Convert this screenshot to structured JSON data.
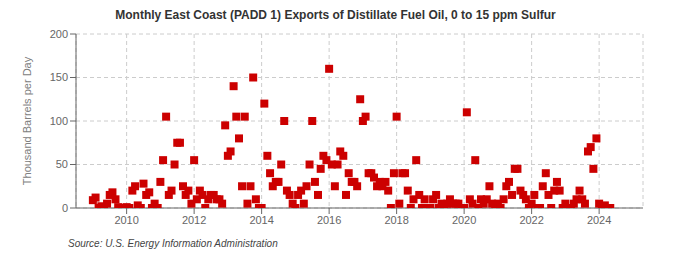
{
  "chart_data": {
    "type": "scatter",
    "title": "Monthly East Coast (PADD 1) Exports of Distillate Fuel Oil, 0 to 15 ppm Sulfur",
    "ylabel": "Thousand Barrels per Day",
    "annotations": [
      "Source: U.S. Energy Information Administration"
    ],
    "color": "#cc0000",
    "marker": "square",
    "grid": true,
    "xlim": [
      2008.5,
      2025.3
    ],
    "xticks": [
      2010,
      2012,
      2014,
      2016,
      2018,
      2020,
      2022,
      2024
    ],
    "ylim": [
      0,
      200
    ],
    "yticks": [
      0,
      50,
      100,
      150,
      200
    ],
    "x": [
      2009.0,
      2009.08,
      2009.17,
      2009.25,
      2009.33,
      2009.42,
      2009.5,
      2009.58,
      2009.67,
      2009.75,
      2009.83,
      2009.92,
      2010.0,
      2010.08,
      2010.17,
      2010.25,
      2010.33,
      2010.42,
      2010.5,
      2010.58,
      2010.67,
      2010.75,
      2010.83,
      2010.92,
      2011.0,
      2011.08,
      2011.17,
      2011.25,
      2011.33,
      2011.42,
      2011.5,
      2011.58,
      2011.67,
      2011.75,
      2011.83,
      2011.92,
      2012.0,
      2012.08,
      2012.17,
      2012.25,
      2012.33,
      2012.42,
      2012.5,
      2012.58,
      2012.67,
      2012.75,
      2012.83,
      2012.92,
      2013.0,
      2013.08,
      2013.17,
      2013.25,
      2013.33,
      2013.42,
      2013.5,
      2013.58,
      2013.67,
      2013.75,
      2013.83,
      2013.92,
      2014.0,
      2014.08,
      2014.17,
      2014.25,
      2014.33,
      2014.42,
      2014.5,
      2014.58,
      2014.67,
      2014.75,
      2014.83,
      2014.92,
      2015.0,
      2015.08,
      2015.17,
      2015.25,
      2015.33,
      2015.42,
      2015.5,
      2015.58,
      2015.67,
      2015.75,
      2015.83,
      2015.92,
      2016.0,
      2016.08,
      2016.17,
      2016.25,
      2016.33,
      2016.42,
      2016.5,
      2016.58,
      2016.67,
      2016.75,
      2016.83,
      2016.92,
      2017.0,
      2017.08,
      2017.17,
      2017.25,
      2017.33,
      2017.42,
      2017.5,
      2017.58,
      2017.67,
      2017.75,
      2017.83,
      2017.92,
      2018.0,
      2018.08,
      2018.17,
      2018.25,
      2018.33,
      2018.42,
      2018.5,
      2018.58,
      2018.67,
      2018.75,
      2018.83,
      2018.92,
      2019.0,
      2019.08,
      2019.17,
      2019.25,
      2019.33,
      2019.42,
      2019.5,
      2019.58,
      2019.67,
      2019.75,
      2019.83,
      2019.92,
      2020.0,
      2020.08,
      2020.17,
      2020.25,
      2020.33,
      2020.42,
      2020.5,
      2020.58,
      2020.67,
      2020.75,
      2020.83,
      2020.92,
      2021.0,
      2021.08,
      2021.17,
      2021.25,
      2021.33,
      2021.42,
      2021.5,
      2021.58,
      2021.67,
      2021.75,
      2021.83,
      2021.92,
      2022.0,
      2022.08,
      2022.17,
      2022.25,
      2022.33,
      2022.42,
      2022.5,
      2022.58,
      2022.67,
      2022.75,
      2022.83,
      2022.92,
      2023.0,
      2023.08,
      2023.17,
      2023.25,
      2023.33,
      2023.42,
      2023.5,
      2023.58,
      2023.67,
      2023.75,
      2023.83,
      2023.92,
      2024.0,
      2024.08,
      2024.17,
      2024.25,
      2024.33
    ],
    "values": [
      9,
      12,
      0,
      2,
      0,
      5,
      15,
      18,
      10,
      1,
      0,
      0,
      1,
      0,
      20,
      25,
      3,
      0,
      28,
      15,
      18,
      0,
      5,
      0,
      30,
      55,
      105,
      15,
      20,
      50,
      75,
      75,
      25,
      15,
      20,
      5,
      55,
      10,
      20,
      15,
      0,
      10,
      15,
      15,
      10,
      10,
      5,
      95,
      60,
      65,
      140,
      105,
      80,
      25,
      105,
      5,
      25,
      150,
      10,
      0,
      0,
      120,
      60,
      40,
      25,
      30,
      30,
      50,
      100,
      20,
      15,
      5,
      0,
      15,
      20,
      5,
      25,
      50,
      100,
      30,
      15,
      45,
      60,
      55,
      160,
      50,
      25,
      50,
      65,
      60,
      15,
      40,
      30,
      30,
      25,
      125,
      100,
      105,
      40,
      40,
      35,
      25,
      30,
      25,
      30,
      20,
      0,
      40,
      105,
      5,
      40,
      40,
      20,
      0,
      10,
      55,
      15,
      0,
      10,
      0,
      0,
      10,
      15,
      0,
      5,
      0,
      5,
      10,
      5,
      5,
      5,
      0,
      0,
      110,
      10,
      5,
      55,
      0,
      10,
      5,
      10,
      25,
      5,
      0,
      5,
      0,
      10,
      25,
      30,
      15,
      45,
      45,
      20,
      15,
      10,
      0,
      5,
      15,
      0,
      0,
      25,
      40,
      15,
      0,
      20,
      30,
      20,
      0,
      5,
      0,
      0,
      5,
      10,
      20,
      10,
      5,
      65,
      70,
      45,
      80,
      5,
      0,
      3,
      0,
      0
    ]
  }
}
